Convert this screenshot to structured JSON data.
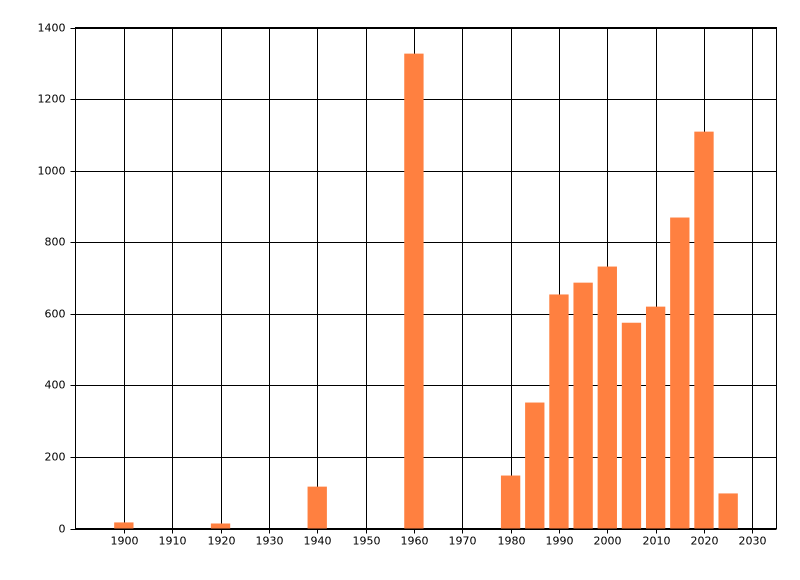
{
  "chart_data": {
    "type": "bar",
    "x": [
      1900,
      1920,
      1940,
      1960,
      1980,
      1985,
      1990,
      1995,
      2000,
      2005,
      2010,
      2015,
      2020,
      2025
    ],
    "values": [
      17,
      14,
      117,
      1327,
      148,
      352,
      654,
      687,
      732,
      575,
      620,
      869,
      1109,
      98
    ],
    "color": "#ff8040",
    "xlim": [
      1890,
      2035
    ],
    "xticks": [
      1900,
      1910,
      1920,
      1930,
      1940,
      1950,
      1960,
      1970,
      1980,
      1990,
      2000,
      2010,
      2020,
      2030
    ],
    "ylim": [
      0,
      1400
    ],
    "yticks": [
      0,
      200,
      400,
      600,
      800,
      1000,
      1200,
      1400
    ],
    "grid": true
  }
}
